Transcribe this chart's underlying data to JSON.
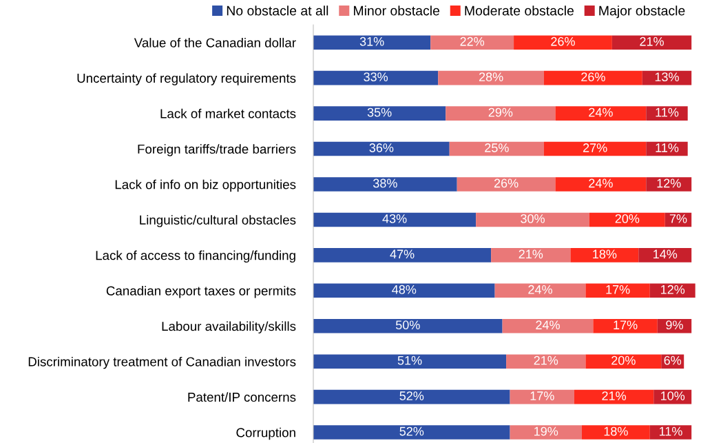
{
  "chart_data": {
    "type": "bar",
    "orientation": "horizontal",
    "stacked": true,
    "legend": "top",
    "grid": false,
    "categories": [
      "Value of the Canadian dollar",
      "Uncertainty of regulatory requirements",
      "Lack of market contacts",
      "Foreign tariffs/trade barriers",
      "Lack of info on biz opportunities",
      "Linguistic/cultural obstacles",
      "Lack of access to financing/funding",
      "Canadian export taxes or permits",
      "Labour availability/skills",
      "Discriminatory treatment of Canadian investors",
      "Patent/IP concerns",
      "Corruption"
    ],
    "series": [
      {
        "name": "No obstacle at all",
        "color": "#2e50a6",
        "values": [
          31,
          33,
          35,
          36,
          38,
          43,
          47,
          48,
          50,
          51,
          52,
          52
        ],
        "value_labels": [
          "31%",
          "33%",
          "35%",
          "36%",
          "38%",
          "43%",
          "47%",
          "48%",
          "50%",
          "51%",
          "52%",
          "52%"
        ]
      },
      {
        "name": "Minor obstacle",
        "color": "#ea7878",
        "values": [
          22,
          28,
          29,
          25,
          26,
          30,
          21,
          24,
          24,
          21,
          17,
          19
        ],
        "value_labels": [
          "22%",
          "28%",
          "29%",
          "25%",
          "26%",
          "30%",
          "21%",
          "24%",
          "24%",
          "21%",
          "17%",
          "19%"
        ]
      },
      {
        "name": "Moderate obstacle",
        "color": "#fe2a1c",
        "values": [
          26,
          26,
          24,
          27,
          24,
          20,
          18,
          17,
          17,
          20,
          21,
          18
        ],
        "value_labels": [
          "26%",
          "26%",
          "24%",
          "27%",
          "24%",
          "20%",
          "18%",
          "17%",
          "17%",
          "20%",
          "21%",
          "18%"
        ]
      },
      {
        "name": "Major obstacle",
        "color": "#c8202c",
        "values": [
          21,
          13,
          11,
          11,
          12,
          7,
          14,
          12,
          9,
          6,
          10,
          11
        ],
        "value_labels": [
          "21%",
          "13%",
          "11%",
          "11%",
          "12%",
          "7%",
          "14%",
          "12%",
          "9%",
          "6%",
          "10%",
          "11%"
        ]
      }
    ]
  }
}
